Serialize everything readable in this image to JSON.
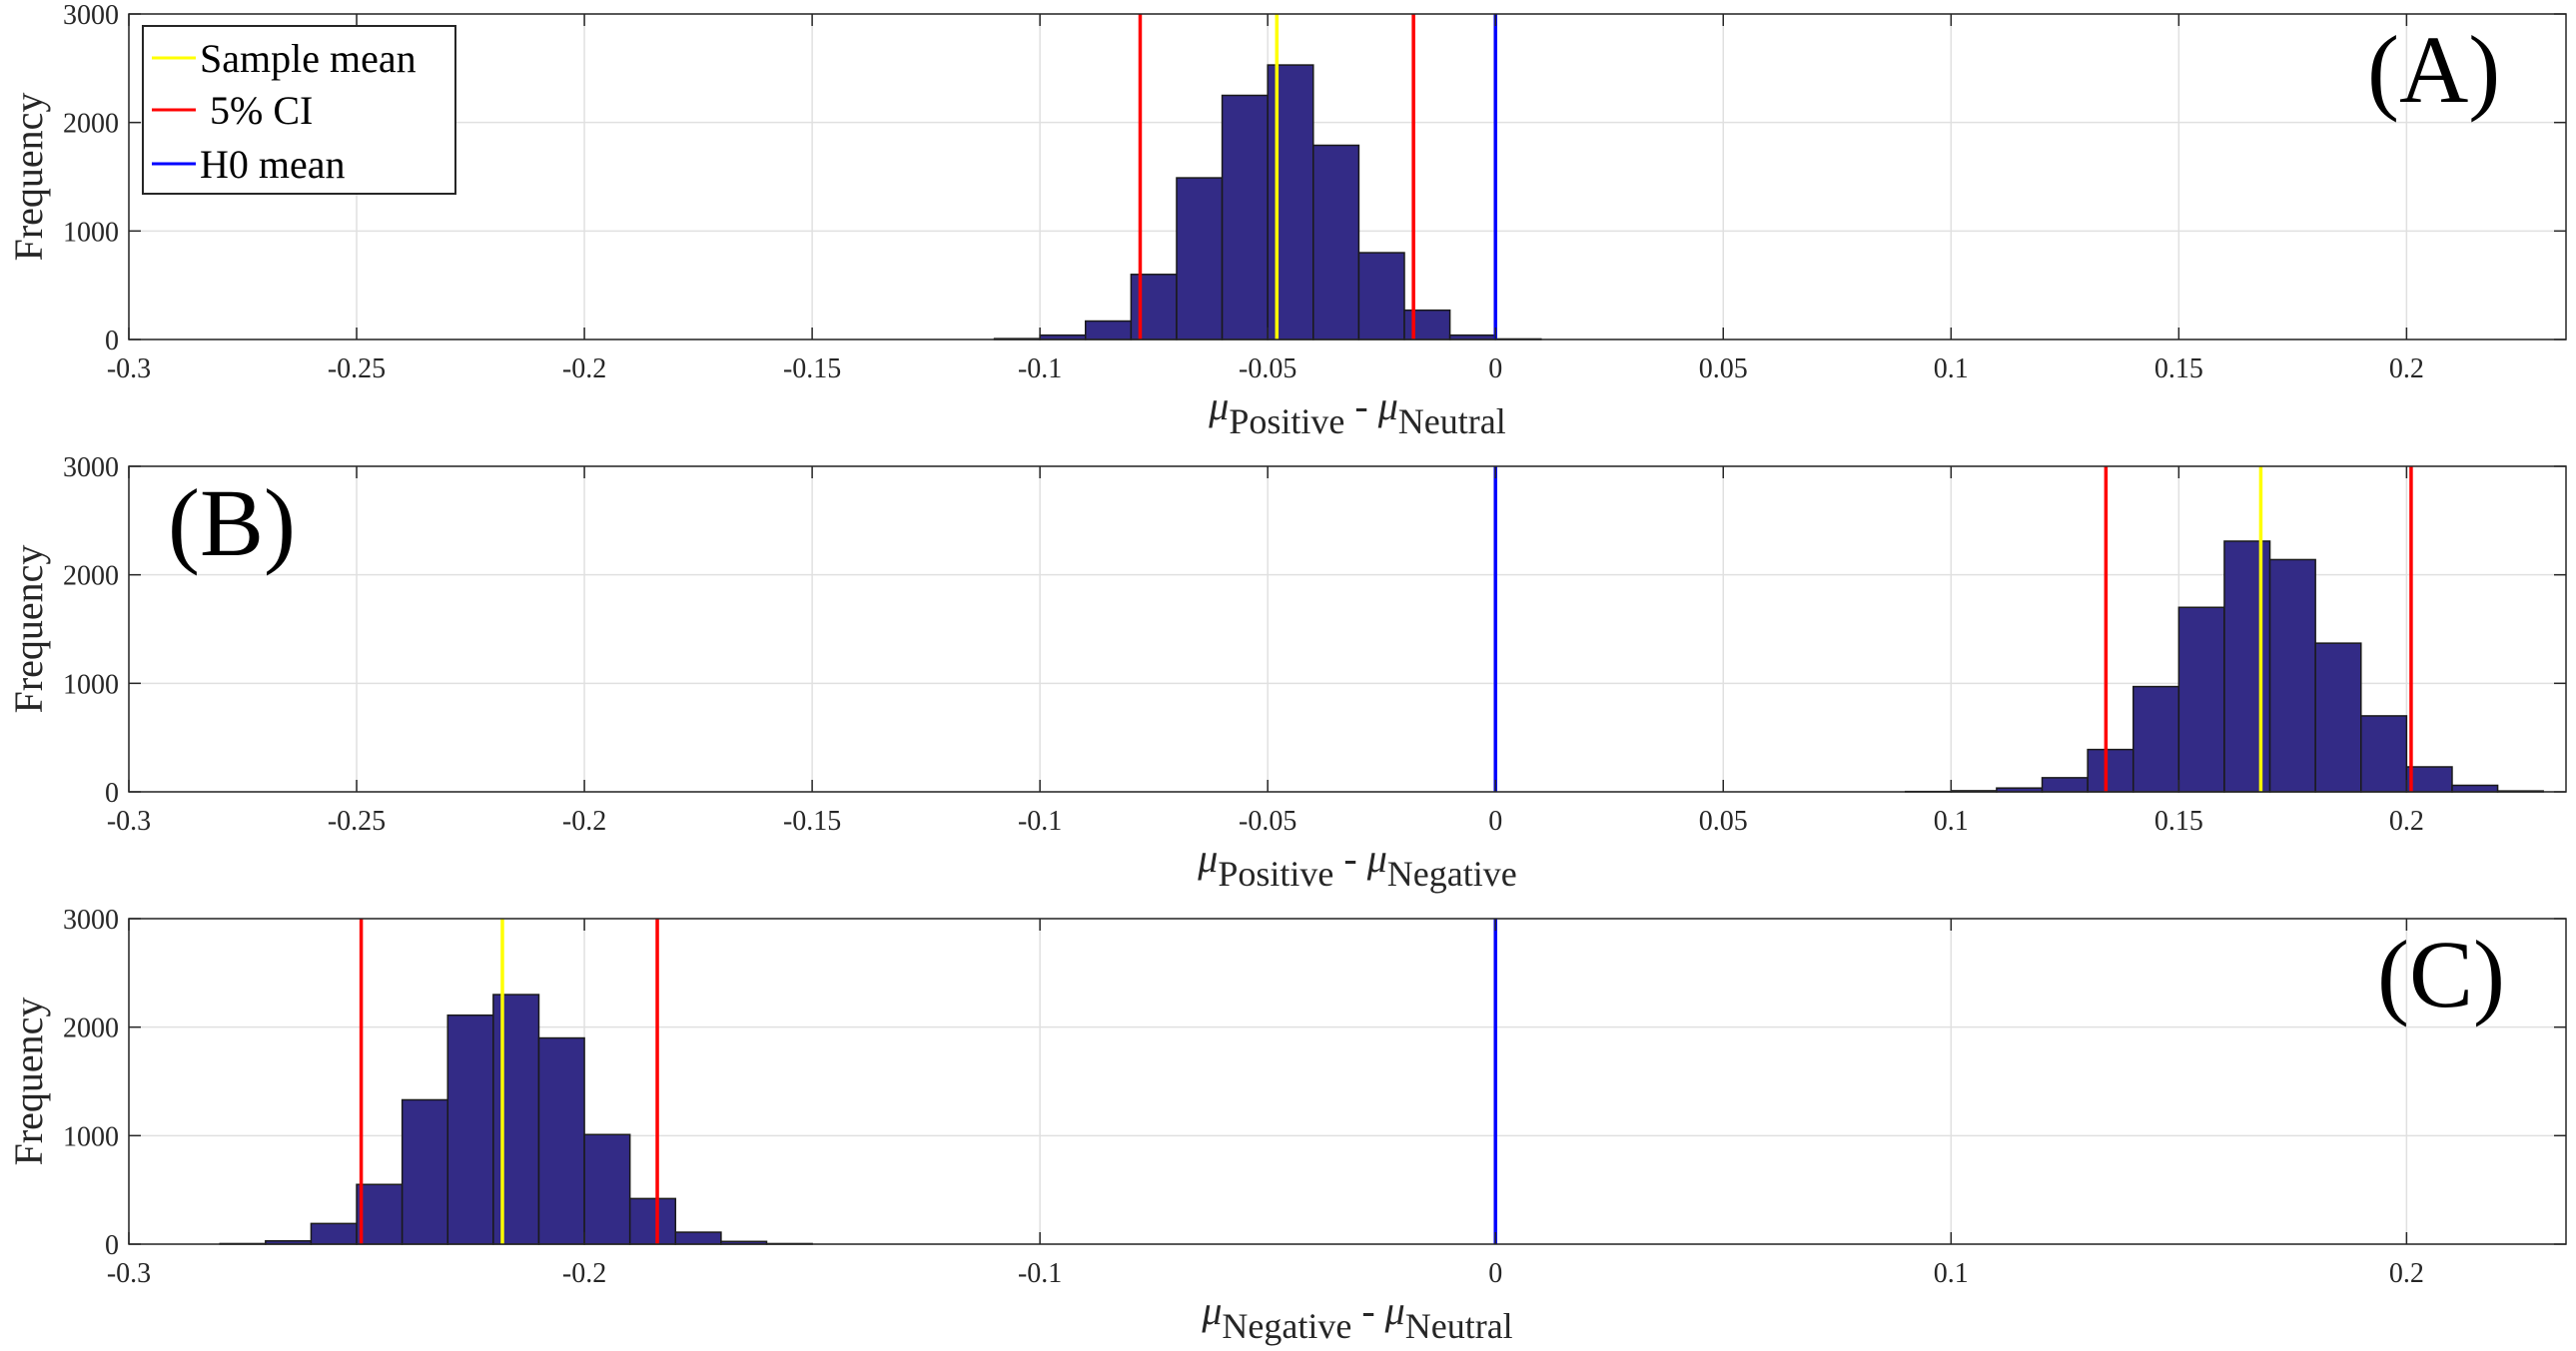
{
  "chart_data": [
    {
      "type": "bar",
      "panel_label": "(A)",
      "xlabel": {
        "mu1": "μ",
        "sub1": "Positive",
        "sep": " - ",
        "mu2": "μ",
        "sub2": "Neutral"
      },
      "ylabel": "Frequency",
      "xlim": [
        -0.3,
        0.235
      ],
      "ylim": [
        0,
        3000
      ],
      "xticks": [
        -0.3,
        -0.25,
        -0.2,
        -0.15,
        -0.1,
        -0.05,
        0,
        0.05,
        0.1,
        0.15,
        0.2
      ],
      "xtick_labels": [
        "-0.3",
        "-0.25",
        "-0.2",
        "-0.15",
        "-0.1",
        "-0.05",
        "0",
        "0.05",
        "0.1",
        "0.15",
        "0.2"
      ],
      "yticks": [
        0,
        1000,
        2000,
        3000
      ],
      "ytick_labels": [
        "0",
        "1000",
        "2000",
        "3000"
      ],
      "bin_width": 0.01,
      "bins_start": [
        -0.11,
        -0.1,
        -0.09,
        -0.08,
        -0.07,
        -0.06,
        -0.05,
        -0.04,
        -0.03,
        -0.02,
        -0.01,
        0.0
      ],
      "values": [
        8,
        40,
        170,
        600,
        1490,
        2250,
        2530,
        1790,
        800,
        270,
        40,
        5
      ],
      "lines": {
        "sample_mean": -0.048,
        "ci_low": -0.078,
        "ci_high": -0.018,
        "h0_mean": 0
      },
      "grid": true
    },
    {
      "type": "bar",
      "panel_label": "(B)",
      "xlabel": {
        "mu1": "μ",
        "sub1": "Positive",
        "sep": " - ",
        "mu2": "μ",
        "sub2": "Negative"
      },
      "ylabel": "Frequency",
      "xlim": [
        -0.3,
        0.235
      ],
      "ylim": [
        0,
        3000
      ],
      "xticks": [
        -0.3,
        -0.25,
        -0.2,
        -0.15,
        -0.1,
        -0.05,
        0,
        0.05,
        0.1,
        0.15,
        0.2
      ],
      "xtick_labels": [
        "-0.3",
        "-0.25",
        "-0.2",
        "-0.15",
        "-0.1",
        "-0.05",
        "0",
        "0.05",
        "0.1",
        "0.15",
        "0.2"
      ],
      "yticks": [
        0,
        1000,
        2000,
        3000
      ],
      "ytick_labels": [
        "0",
        "1000",
        "2000",
        "3000"
      ],
      "bin_width": 0.01,
      "bins_start": [
        0.09,
        0.1,
        0.11,
        0.12,
        0.13,
        0.14,
        0.15,
        0.16,
        0.17,
        0.18,
        0.19,
        0.2,
        0.21,
        0.22
      ],
      "values": [
        3,
        10,
        35,
        130,
        390,
        970,
        1700,
        2310,
        2140,
        1370,
        700,
        230,
        60,
        8
      ],
      "lines": {
        "sample_mean": 0.168,
        "ci_low": 0.134,
        "ci_high": 0.201,
        "h0_mean": 0
      },
      "grid": true
    },
    {
      "type": "bar",
      "panel_label": "(C)",
      "xlabel": {
        "mu1": "μ",
        "sub1": "Negative",
        "sep": " - ",
        "mu2": "μ",
        "sub2": "Neutral"
      },
      "ylabel": "Frequency",
      "xlim": [
        -0.3,
        0.235
      ],
      "ylim": [
        0,
        3000
      ],
      "xticks": [
        -0.3,
        -0.2,
        -0.1,
        0,
        0.1,
        0.2
      ],
      "xtick_labels": [
        "-0.3",
        "-0.2",
        "-0.1",
        "0",
        "0.1",
        "0.2"
      ],
      "yticks": [
        0,
        1000,
        2000,
        3000
      ],
      "ytick_labels": [
        "0",
        "1000",
        "2000",
        "3000"
      ],
      "bin_width": 0.01,
      "bins_start": [
        -0.28,
        -0.27,
        -0.26,
        -0.25,
        -0.24,
        -0.23,
        -0.22,
        -0.21,
        -0.2,
        -0.19,
        -0.18,
        -0.17,
        -0.16
      ],
      "values": [
        5,
        30,
        190,
        550,
        1330,
        2110,
        2300,
        1900,
        1010,
        420,
        110,
        25,
        5
      ],
      "lines": {
        "sample_mean": -0.218,
        "ci_low": -0.249,
        "ci_high": -0.184,
        "h0_mean": 0
      },
      "grid": true
    }
  ],
  "legend": {
    "entries": [
      {
        "label": "Sample mean",
        "color": "#ffff00"
      },
      {
        "label": " 5% CI",
        "color": "#ff0000"
      },
      {
        "label": "H0 mean",
        "color": "#0000ff"
      }
    ],
    "placement": "top-left of panel A"
  },
  "colors": {
    "bar_fill": "#332b86",
    "bar_edge": "#1a1a1a",
    "sample_mean": "#ffff00",
    "ci": "#ff0000",
    "h0_mean": "#0000ff",
    "grid": "#e0e0e0",
    "axis": "#262626"
  }
}
